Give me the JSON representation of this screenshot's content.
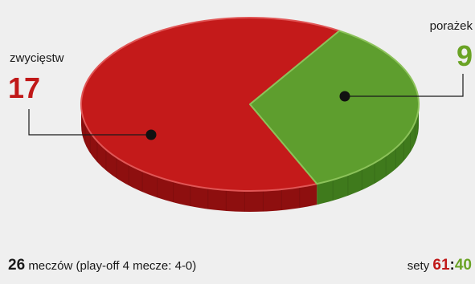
{
  "chart_data": {
    "type": "pie",
    "style": "3d",
    "slices": [
      {
        "label": "zwycięstw",
        "value": 17,
        "color": "#c41a1a"
      },
      {
        "label": "porażek",
        "value": 9,
        "color": "#5e9e2e"
      }
    ]
  },
  "footer": {
    "matches_count": "26",
    "matches_text": "meczów (play-off 4 mecze: 4-0)",
    "sets_label": "sety",
    "sets_won": "61",
    "sets_separator": ":",
    "sets_lost": "40"
  },
  "colors": {
    "win": "#c41a1a",
    "win_side": "#8e0f0f",
    "win_label": "#c01818",
    "loss": "#5e9e2e",
    "loss_side": "#3f7a1c",
    "loss_label": "#6aa325"
  }
}
